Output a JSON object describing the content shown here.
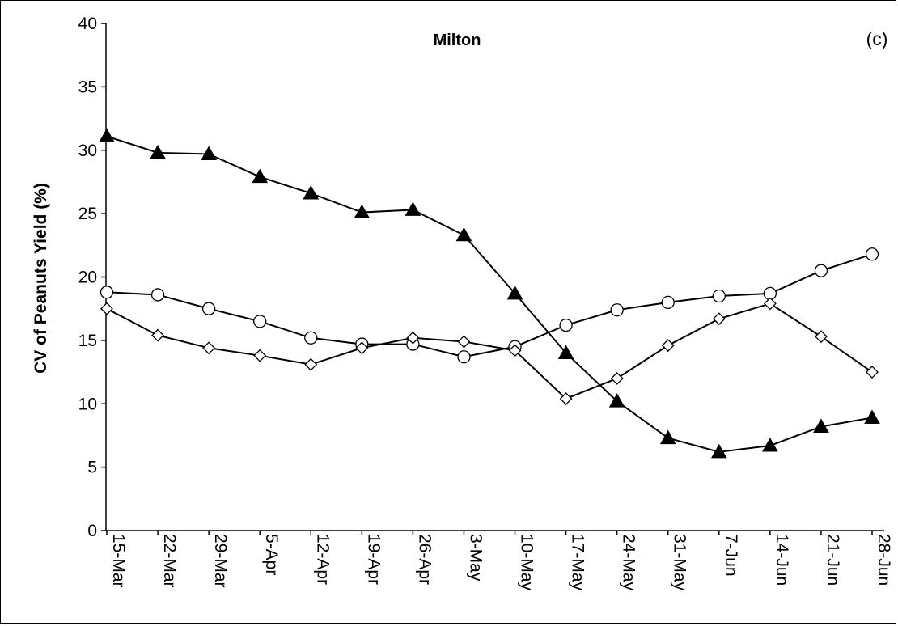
{
  "chart_data": {
    "type": "line",
    "title": "Milton",
    "panel_label": "(c)",
    "xlabel": "",
    "ylabel": "CV of Peanuts  Yield (%)",
    "ylim": [
      0,
      40
    ],
    "yticks": [
      0,
      5,
      10,
      15,
      20,
      25,
      30,
      35,
      40
    ],
    "categories": [
      "15-Mar",
      "22-Mar",
      "29-Mar",
      "5-Apr",
      "12-Apr",
      "19-Apr",
      "26-Apr",
      "3-May",
      "10-May",
      "17-May",
      "24-May",
      "31-May",
      "7-Jun",
      "14-Jun",
      "21-Jun",
      "28-Jun"
    ],
    "grid": false,
    "legend": "none",
    "series": [
      {
        "marker": "filled-triangle",
        "color": "#000000",
        "values": [
          31.1,
          29.8,
          29.7,
          27.9,
          26.6,
          25.1,
          25.3,
          23.3,
          18.7,
          14.0,
          10.2,
          7.3,
          6.2,
          6.7,
          8.2,
          8.9
        ]
      },
      {
        "marker": "open-circle",
        "color": "#000000",
        "values": [
          18.8,
          18.6,
          17.5,
          16.5,
          15.2,
          14.7,
          14.7,
          13.7,
          14.5,
          16.2,
          17.4,
          18.0,
          18.5,
          18.7,
          20.5,
          21.8
        ]
      },
      {
        "marker": "open-diamond",
        "color": "#000000",
        "values": [
          17.5,
          15.4,
          14.4,
          13.8,
          13.1,
          14.4,
          15.2,
          14.9,
          14.2,
          10.4,
          12.0,
          14.6,
          16.7,
          17.9,
          15.3,
          12.5
        ]
      }
    ]
  }
}
